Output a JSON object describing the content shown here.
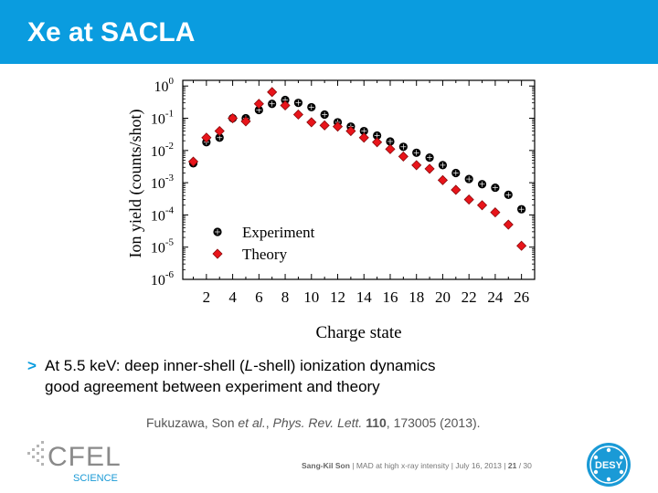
{
  "slide": {
    "title": "Xe at SACLA"
  },
  "bullet": {
    "marker": ">",
    "line1_pre": "At 5.5 keV: deep inner-shell (",
    "line1_ital": "L",
    "line1_post": "-shell) ionization dynamics",
    "line2": "good agreement between experiment and theory"
  },
  "citation": {
    "authors": "Fukuzawa, Son ",
    "etal": "et al.",
    "sep": ", ",
    "journal": "Phys. Rev. Lett.",
    "volume": "110",
    "rest": ", 173005 (2013)."
  },
  "footer": {
    "presenter": "Sang-Kil Son",
    "talk": "MAD at high x-ray intensity",
    "date": "July 16, 2013",
    "page": "21",
    "total": "/ 30",
    "cfel_logo_text": "CFEL",
    "cfel_logo_sub": "SCIENCE",
    "desy_logo_text": "DESY"
  },
  "colors": {
    "title_bar": "#0a9cdf",
    "experiment": "#000000",
    "theory": "#e8141a"
  },
  "chart_data": {
    "type": "scatter",
    "title": "",
    "xlabel": "Charge state",
    "ylabel": "Ion yield (counts/shot)",
    "y_scale": "log",
    "xlim": [
      0.2,
      27
    ],
    "ylim": [
      1e-06,
      1.5
    ],
    "x_ticks": [
      2,
      4,
      6,
      8,
      10,
      12,
      14,
      16,
      18,
      20,
      22,
      24,
      26
    ],
    "y_tick_exponents": [
      "0",
      "-1",
      "-2",
      "-3",
      "-4",
      "-5",
      "-6"
    ],
    "y_tick_base": "10",
    "legend_position": "lower-left",
    "grid": false,
    "series": [
      {
        "name": "Experiment",
        "marker": "circle",
        "x": [
          1,
          2,
          3,
          4,
          5,
          6,
          7,
          8,
          9,
          10,
          11,
          12,
          13,
          14,
          15,
          16,
          17,
          18,
          19,
          20,
          21,
          22,
          23,
          24,
          25,
          26
        ],
        "y": [
          0.004,
          0.018,
          0.025,
          0.1,
          0.1,
          0.18,
          0.28,
          0.37,
          0.3,
          0.22,
          0.13,
          0.075,
          0.055,
          0.04,
          0.029,
          0.019,
          0.013,
          0.0085,
          0.006,
          0.0035,
          0.002,
          0.0013,
          0.0009,
          0.0007,
          0.00042,
          0.00015
        ]
      },
      {
        "name": "Theory",
        "marker": "diamond",
        "x": [
          1,
          2,
          3,
          4,
          5,
          6,
          7,
          8,
          9,
          10,
          11,
          12,
          13,
          14,
          15,
          16,
          17,
          18,
          19,
          20,
          21,
          22,
          23,
          24,
          25,
          26
        ],
        "y": [
          0.0045,
          0.025,
          0.04,
          0.1,
          0.08,
          0.28,
          0.65,
          0.25,
          0.13,
          0.075,
          0.06,
          0.055,
          0.04,
          0.025,
          0.018,
          0.011,
          0.0065,
          0.0035,
          0.0027,
          0.0012,
          0.0006,
          0.0003,
          0.0002,
          0.00012,
          5e-05,
          1.1e-05
        ]
      }
    ]
  }
}
